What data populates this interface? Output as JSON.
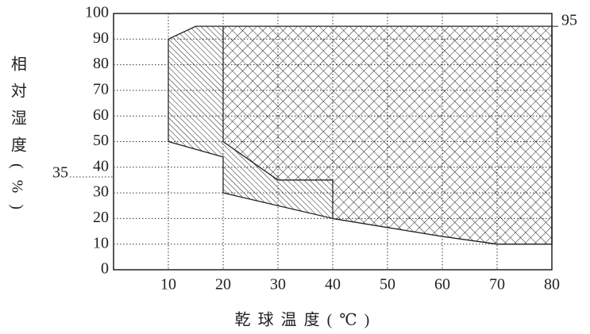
{
  "chart_data": {
    "type": "area",
    "x_label": "乾球温度(℃)",
    "y_label": "相対湿度(%)",
    "xlim": [
      0,
      80
    ],
    "ylim": [
      0,
      100
    ],
    "xticks": [
      10,
      20,
      30,
      40,
      50,
      60,
      70,
      80
    ],
    "yticks": [
      0,
      10,
      20,
      30,
      40,
      50,
      60,
      70,
      80,
      90,
      100
    ],
    "grid": true,
    "color": "#222222",
    "series": [
      {
        "hatch": "diagonal",
        "x": [
          10,
          10,
          15,
          80,
          80,
          70,
          60,
          50,
          40,
          30,
          20,
          20
        ],
        "values": [
          50,
          90,
          95,
          95,
          10,
          10,
          13,
          16.5,
          20,
          25,
          30,
          44
        ]
      },
      {
        "hatch": "cross",
        "x": [
          20,
          80,
          80,
          70,
          60,
          50,
          40,
          40,
          30,
          20
        ],
        "values": [
          95,
          95,
          10,
          10,
          13,
          16.5,
          20,
          35,
          35,
          50
        ]
      }
    ],
    "annotations": [
      {
        "label": "95",
        "y": 95,
        "side": "right"
      },
      {
        "label": "35",
        "y": 35,
        "side": "left"
      }
    ]
  }
}
